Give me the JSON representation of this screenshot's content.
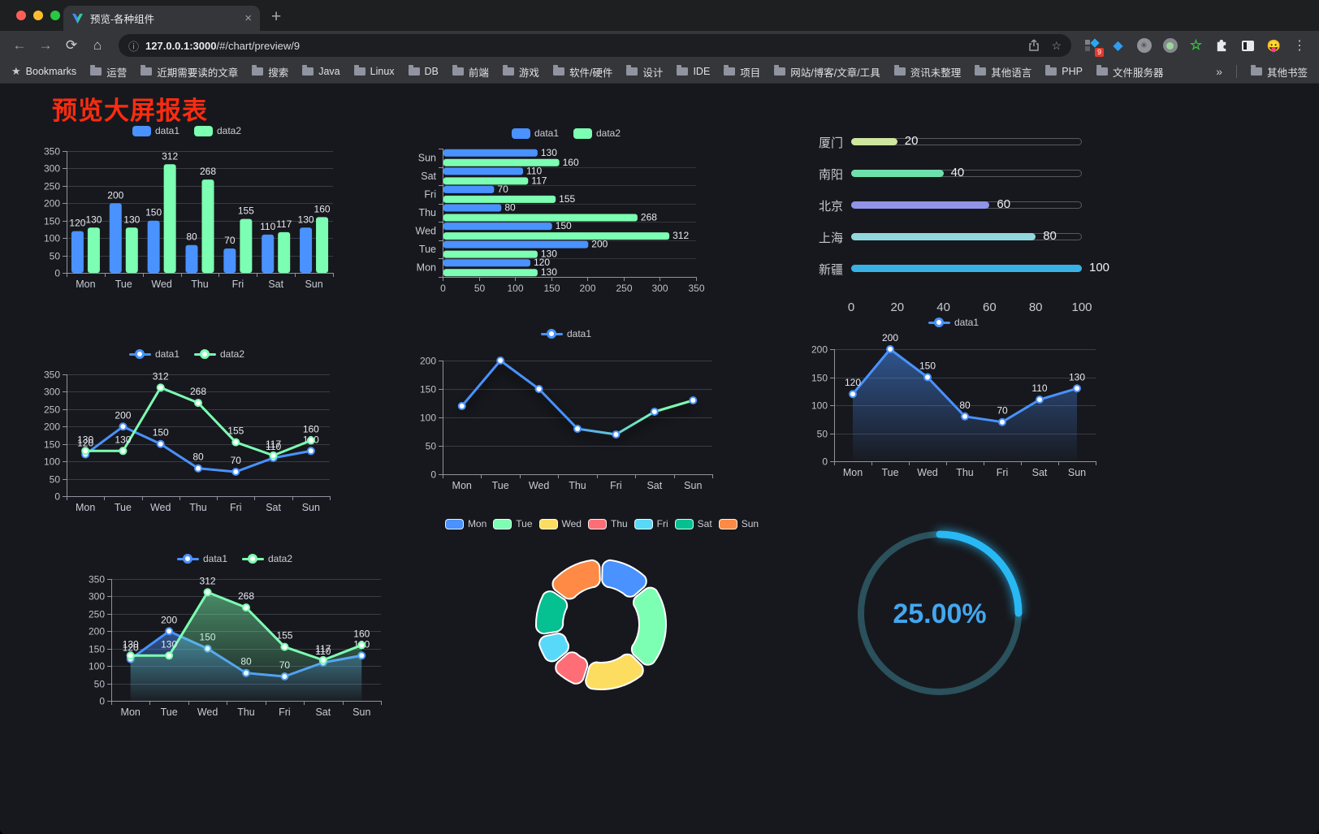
{
  "browser": {
    "tab_title": "预览-各种组件",
    "close_tab_icon": "×",
    "new_tab_icon": "+",
    "back_icon": "←",
    "forward_icon": "→",
    "reload_icon": "⟳",
    "home_icon": "⌂",
    "info_icon": "ⓘ",
    "star_icon": "☆",
    "url_host": "127.0.0.1:3000",
    "url_path": "/#/chart/preview/9",
    "extension_badge": "9",
    "menu_icon": "⋮",
    "bookmarks_label": "Bookmarks",
    "bookmarks": [
      "运营",
      "近期需要读的文章",
      "搜索",
      "Java",
      "Linux",
      "DB",
      "前端",
      "游戏",
      "软件/硬件",
      "设计",
      "IDE",
      "项目",
      "网站/博客/文章/工具",
      "资讯未整理",
      "其他语言",
      "PHP",
      "文件服务器"
    ],
    "overflow_chevron": "»",
    "other_bookmarks": "其他书签"
  },
  "page": {
    "title": "预览大屏报表",
    "title_color": "#fb2c10",
    "background": "#17181d"
  },
  "palette": {
    "blue": "#4992ff",
    "green": "#7cffb2",
    "yellow": "#fddd60",
    "red": "#ff6e76",
    "lightblue": "#58d9f9",
    "teal": "#05c091",
    "orange": "#ff8a45"
  },
  "chart_data": [
    {
      "id": "bar-vertical",
      "type": "bar",
      "categories": [
        "Mon",
        "Tue",
        "Wed",
        "Thu",
        "Fri",
        "Sat",
        "Sun"
      ],
      "series": [
        {
          "name": "data1",
          "color": "#4992ff",
          "values": [
            120,
            200,
            150,
            80,
            70,
            110,
            130
          ]
        },
        {
          "name": "data2",
          "color": "#7cffb2",
          "values": [
            130,
            130,
            312,
            268,
            155,
            117,
            160
          ]
        }
      ],
      "ylim": [
        0,
        350
      ],
      "ystep": 50,
      "legend": "top",
      "value_labels": true,
      "grid": true
    },
    {
      "id": "bar-horizontal",
      "type": "hbar",
      "categories": [
        "Mon",
        "Tue",
        "Wed",
        "Thu",
        "Fri",
        "Sat",
        "Sun"
      ],
      "series": [
        {
          "name": "data1",
          "color": "#4992ff",
          "values": [
            120,
            200,
            150,
            80,
            70,
            110,
            130
          ]
        },
        {
          "name": "data2",
          "color": "#7cffb2",
          "values": [
            130,
            130,
            312,
            268,
            155,
            117,
            160
          ]
        }
      ],
      "xlim": [
        0,
        350
      ],
      "xstep": 50,
      "legend": "top",
      "value_labels": true,
      "grid": true
    },
    {
      "id": "city-progress",
      "type": "progress",
      "items": [
        {
          "label": "厦门",
          "value": 20,
          "color": "#cde79e"
        },
        {
          "label": "南阳",
          "value": 40,
          "color": "#6ee0ac"
        },
        {
          "label": "北京",
          "value": 60,
          "color": "#9094e8"
        },
        {
          "label": "上海",
          "value": 80,
          "color": "#90d8dd"
        },
        {
          "label": "新疆",
          "value": 100,
          "color": "#38b2e5"
        }
      ],
      "xticks": [
        0,
        20,
        40,
        60,
        80,
        100
      ],
      "xlim": [
        0,
        100
      ]
    },
    {
      "id": "line-two-series",
      "type": "line",
      "categories": [
        "Mon",
        "Tue",
        "Wed",
        "Thu",
        "Fri",
        "Sat",
        "Sun"
      ],
      "series": [
        {
          "name": "data1",
          "color": "#4992ff",
          "values": [
            120,
            200,
            150,
            80,
            70,
            110,
            130
          ]
        },
        {
          "name": "data2",
          "color": "#7cffb2",
          "values": [
            130,
            130,
            312,
            268,
            155,
            117,
            160
          ]
        }
      ],
      "ylim": [
        0,
        350
      ],
      "ystep": 50,
      "legend": "top",
      "value_labels": true,
      "grid": true
    },
    {
      "id": "line-gradient",
      "type": "line",
      "categories": [
        "Mon",
        "Tue",
        "Wed",
        "Thu",
        "Fri",
        "Sat",
        "Sun"
      ],
      "series": [
        {
          "name": "data1",
          "color": "#4992ff",
          "gradient": [
            "#4992ff",
            "#7cffb2"
          ],
          "values": [
            120,
            200,
            150,
            80,
            70,
            110,
            130
          ]
        }
      ],
      "ylim": [
        0,
        200
      ],
      "ystep": 50,
      "legend": "top",
      "value_labels": false,
      "shadow": true,
      "grid": true
    },
    {
      "id": "area-single",
      "type": "line",
      "categories": [
        "Mon",
        "Tue",
        "Wed",
        "Thu",
        "Fri",
        "Sat",
        "Sun"
      ],
      "series": [
        {
          "name": "data1",
          "color": "#4992ff",
          "area": true,
          "values": [
            120,
            200,
            150,
            80,
            70,
            110,
            130
          ]
        }
      ],
      "ylim": [
        0,
        200
      ],
      "ystep": 50,
      "legend": "top",
      "value_labels": true,
      "grid": true
    },
    {
      "id": "area-two-series",
      "type": "line",
      "categories": [
        "Mon",
        "Tue",
        "Wed",
        "Thu",
        "Fri",
        "Sat",
        "Sun"
      ],
      "series": [
        {
          "name": "data1",
          "color": "#4992ff",
          "area": true,
          "values": [
            120,
            200,
            150,
            80,
            70,
            110,
            130
          ]
        },
        {
          "name": "data2",
          "color": "#7cffb2",
          "area": true,
          "values": [
            130,
            130,
            312,
            268,
            155,
            117,
            160
          ]
        }
      ],
      "ylim": [
        0,
        350
      ],
      "ystep": 50,
      "legend": "top",
      "value_labels": true,
      "grid": true
    },
    {
      "id": "donut",
      "type": "pie-donut",
      "labels": [
        "Mon",
        "Tue",
        "Wed",
        "Thu",
        "Fri",
        "Sat",
        "Sun"
      ],
      "values": [
        120,
        200,
        150,
        80,
        70,
        110,
        130
      ],
      "colors": [
        "#4992ff",
        "#7cffb2",
        "#fddd60",
        "#ff6e76",
        "#58d9f9",
        "#05c091",
        "#ff8a45"
      ],
      "legend": "top",
      "border_color": "#ffffff"
    },
    {
      "id": "gauge",
      "type": "gauge",
      "percent": 25,
      "label": "25.00%",
      "color": "#28b9f5",
      "track": "#2a515c",
      "text_color": "#42a7f0"
    }
  ]
}
